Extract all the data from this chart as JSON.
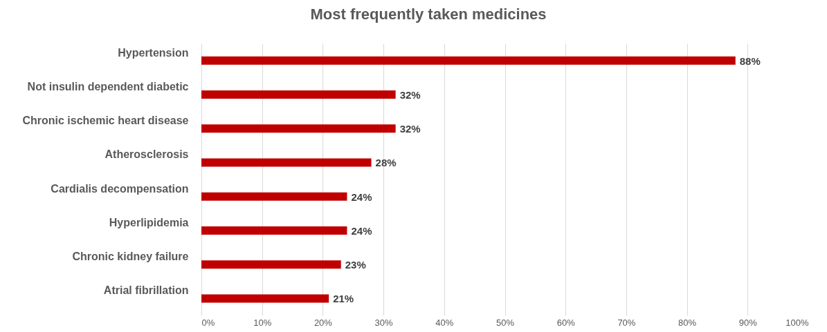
{
  "chart_data": {
    "type": "bar",
    "orientation": "horizontal",
    "title": "Most frequently taken medicines",
    "categories": [
      "Hypertension",
      "Not insulin dependent diabetic",
      "Chronic ischemic heart disease",
      "Atherosclerosis",
      "Cardialis decompensation",
      "Hyperlipidemia",
      "Chronic kidney failure",
      "Atrial fibrillation"
    ],
    "values": [
      88,
      32,
      32,
      28,
      24,
      24,
      23,
      21
    ],
    "value_labels": [
      "88%",
      "32%",
      "32%",
      "28%",
      "24%",
      "24%",
      "23%",
      "21%"
    ],
    "color": "#c00000",
    "xlim": [
      0,
      100
    ],
    "xticks": [
      {
        "value": 0,
        "label": "0%"
      },
      {
        "value": 10,
        "label": "10%"
      },
      {
        "value": 20,
        "label": "20%"
      },
      {
        "value": 30,
        "label": "30%"
      },
      {
        "value": 40,
        "label": "40%"
      },
      {
        "value": 50,
        "label": "50%"
      },
      {
        "value": 60,
        "label": "60%"
      },
      {
        "value": 70,
        "label": "70%"
      },
      {
        "value": 80,
        "label": "80%"
      },
      {
        "value": 90,
        "label": "90%"
      },
      {
        "value": 100,
        "label": "100%"
      }
    ],
    "grid": "x"
  }
}
